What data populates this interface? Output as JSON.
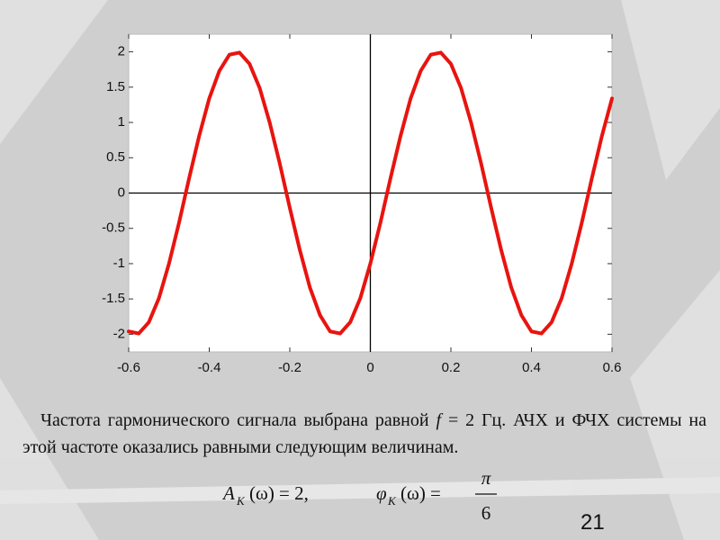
{
  "chart_data": {
    "type": "line",
    "x": [
      -0.6,
      -0.575,
      -0.55,
      -0.525,
      -0.5,
      -0.475,
      -0.45,
      -0.425,
      -0.4,
      -0.375,
      -0.35,
      -0.325,
      -0.3,
      -0.275,
      -0.25,
      -0.225,
      -0.2,
      -0.175,
      -0.15,
      -0.125,
      -0.1,
      -0.075,
      -0.05,
      -0.025,
      0,
      0.025,
      0.05,
      0.075,
      0.1,
      0.125,
      0.15,
      0.175,
      0.2,
      0.225,
      0.25,
      0.275,
      0.3,
      0.325,
      0.35,
      0.375,
      0.4,
      0.425,
      0.45,
      0.475,
      0.5,
      0.525,
      0.55,
      0.575,
      0.6
    ],
    "values": [
      -1.96,
      -1.99,
      -1.83,
      -1.49,
      -1,
      -0.42,
      0.21,
      0.81,
      1.34,
      1.73,
      1.96,
      1.99,
      1.83,
      1.49,
      1,
      0.42,
      -0.21,
      -0.81,
      -1.34,
      -1.73,
      -1.96,
      -1.99,
      -1.83,
      -1.49,
      -1,
      -0.42,
      0.21,
      0.81,
      1.34,
      1.73,
      1.96,
      1.99,
      1.83,
      1.49,
      1,
      0.42,
      -0.21,
      -0.81,
      -1.34,
      -1.73,
      -1.96,
      -1.99,
      -1.83,
      -1.49,
      -1,
      -0.42,
      0.21,
      0.81,
      1.34
    ],
    "color": "#e8140f",
    "xlim": [
      -0.6,
      0.6
    ],
    "ylim": [
      -2.25,
      2.25
    ],
    "xticks": [
      -0.6,
      -0.4,
      -0.2,
      0,
      0.2,
      0.4,
      0.6
    ],
    "yticks": [
      2,
      1.5,
      1,
      0.5,
      0,
      -0.5,
      -1,
      -1.5,
      -2
    ],
    "grid": false,
    "zero_lines": true
  },
  "slide": {
    "text": [
      "Частота гармонического сигнала выбрана равной ",
      "f",
      " = 2 Гц. АЧХ и ФЧХ системы на этой частоте оказались равными следующим величинам."
    ],
    "formula_1": {
      "symbol": "A",
      "subscript": "K",
      "argument": "(ω) = 2,"
    },
    "formula_2": {
      "symbol": "φ",
      "subscript": "K",
      "argument": "(ω) =",
      "numerator": "π",
      "denominator": "6"
    },
    "page_number": "21"
  }
}
